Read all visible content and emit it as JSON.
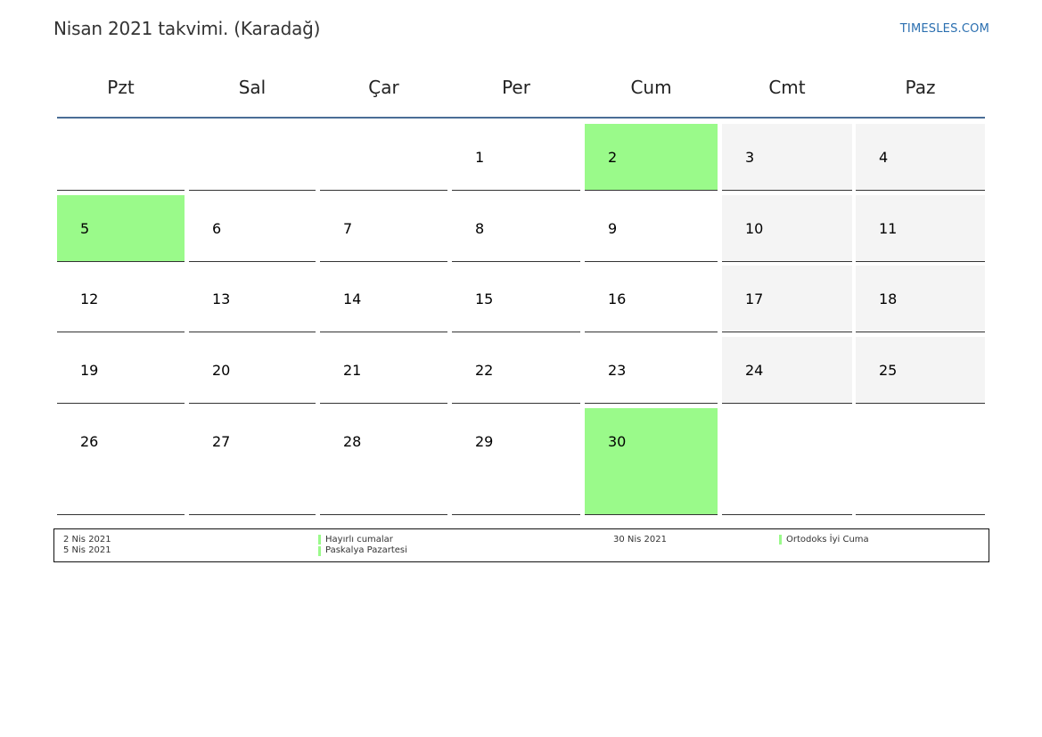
{
  "header": {
    "title": "Nisan 2021 takvimi. (Karadağ)",
    "site": "TIMESLES.COM"
  },
  "weekdays": [
    "Pzt",
    "Sal",
    "Çar",
    "Per",
    "Cum",
    "Cmt",
    "Paz"
  ],
  "weeks": [
    [
      "",
      "",
      "",
      "1",
      "2",
      "3",
      "4"
    ],
    [
      "5",
      "6",
      "7",
      "8",
      "9",
      "10",
      "11"
    ],
    [
      "12",
      "13",
      "14",
      "15",
      "16",
      "17",
      "18"
    ],
    [
      "19",
      "20",
      "21",
      "22",
      "23",
      "24",
      "25"
    ],
    [
      "26",
      "27",
      "28",
      "29",
      "30",
      "",
      ""
    ]
  ],
  "holidays": [
    "2",
    "5",
    "30"
  ],
  "colors": {
    "holiday": "#9afa8a",
    "weekend": "#f4f4f4",
    "header_rule": "#4a6d96",
    "link": "#2b6fb0"
  },
  "legend": [
    {
      "date": "2 Nis 2021",
      "name": "Hayırlı cumalar"
    },
    {
      "date": "5 Nis 2021",
      "name": "Paskalya Pazartesi"
    },
    {
      "date": "30 Nis 2021",
      "name": "Ortodoks İyi Cuma"
    }
  ]
}
